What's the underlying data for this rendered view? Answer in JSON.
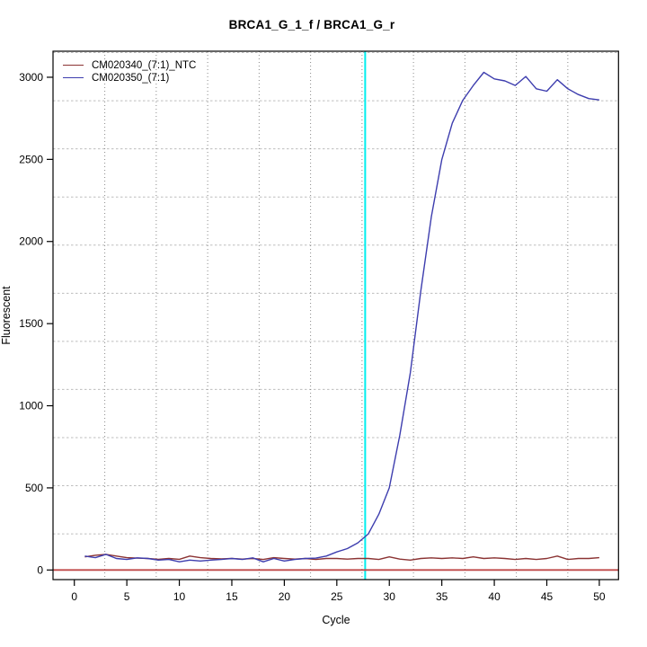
{
  "chart_data": {
    "type": "line",
    "title": "BRCA1_G_1_f / BRCA1_G_r",
    "xlabel": "Cycle",
    "ylabel": "Fluorescent",
    "x_ticks": [
      0,
      5,
      10,
      15,
      20,
      25,
      30,
      35,
      40,
      45,
      50
    ],
    "y_ticks": [
      0,
      500,
      1000,
      1500,
      2000,
      2500,
      3000
    ],
    "xlim": [
      -2.03,
      51.83
    ],
    "ylim": [
      -58.5,
      3158.5
    ],
    "grid": "on",
    "grid_x": [
      2.9,
      7.8,
      12.7,
      17.6,
      22.5,
      27.4,
      32.3,
      37.2,
      42.1,
      47.0
    ],
    "grid_y": [
      220,
      513,
      806,
      1099,
      1392,
      1685,
      1978,
      2271,
      2564,
      2857,
      3150
    ],
    "legend_position": "top-left",
    "threshold_line": {
      "x": 27.7,
      "color": "#00eeee"
    },
    "zero_line": {
      "y": 0,
      "color": "#c04a4a"
    },
    "series": [
      {
        "name": "CM020340_(7:1)_NTC",
        "color": "#8b3333",
        "x_start": 1,
        "values": [
          80,
          90,
          95,
          85,
          75,
          72,
          70,
          65,
          70,
          65,
          85,
          75,
          70,
          68,
          70,
          66,
          70,
          64,
          75,
          70,
          66,
          70,
          64,
          70,
          70,
          66,
          70,
          70,
          64,
          80,
          66,
          60,
          70,
          74,
          70,
          74,
          70,
          80,
          70,
          74,
          70,
          64,
          70,
          64,
          70,
          85,
          64,
          70,
          70,
          75
        ]
      },
      {
        "name": "CM020350_(7:1)",
        "color": "#3d3dae",
        "x_start": 1,
        "values": [
          85,
          75,
          95,
          70,
          64,
          74,
          70,
          60,
          64,
          50,
          60,
          55,
          60,
          64,
          70,
          64,
          74,
          50,
          70,
          55,
          64,
          70,
          72,
          85,
          110,
          130,
          165,
          220,
          340,
          500,
          820,
          1200,
          1700,
          2150,
          2500,
          2720,
          2860,
          2950,
          3030,
          2990,
          2978,
          2950,
          3005,
          2930,
          2915,
          2985,
          2930,
          2895,
          2870,
          2862
        ]
      }
    ]
  }
}
